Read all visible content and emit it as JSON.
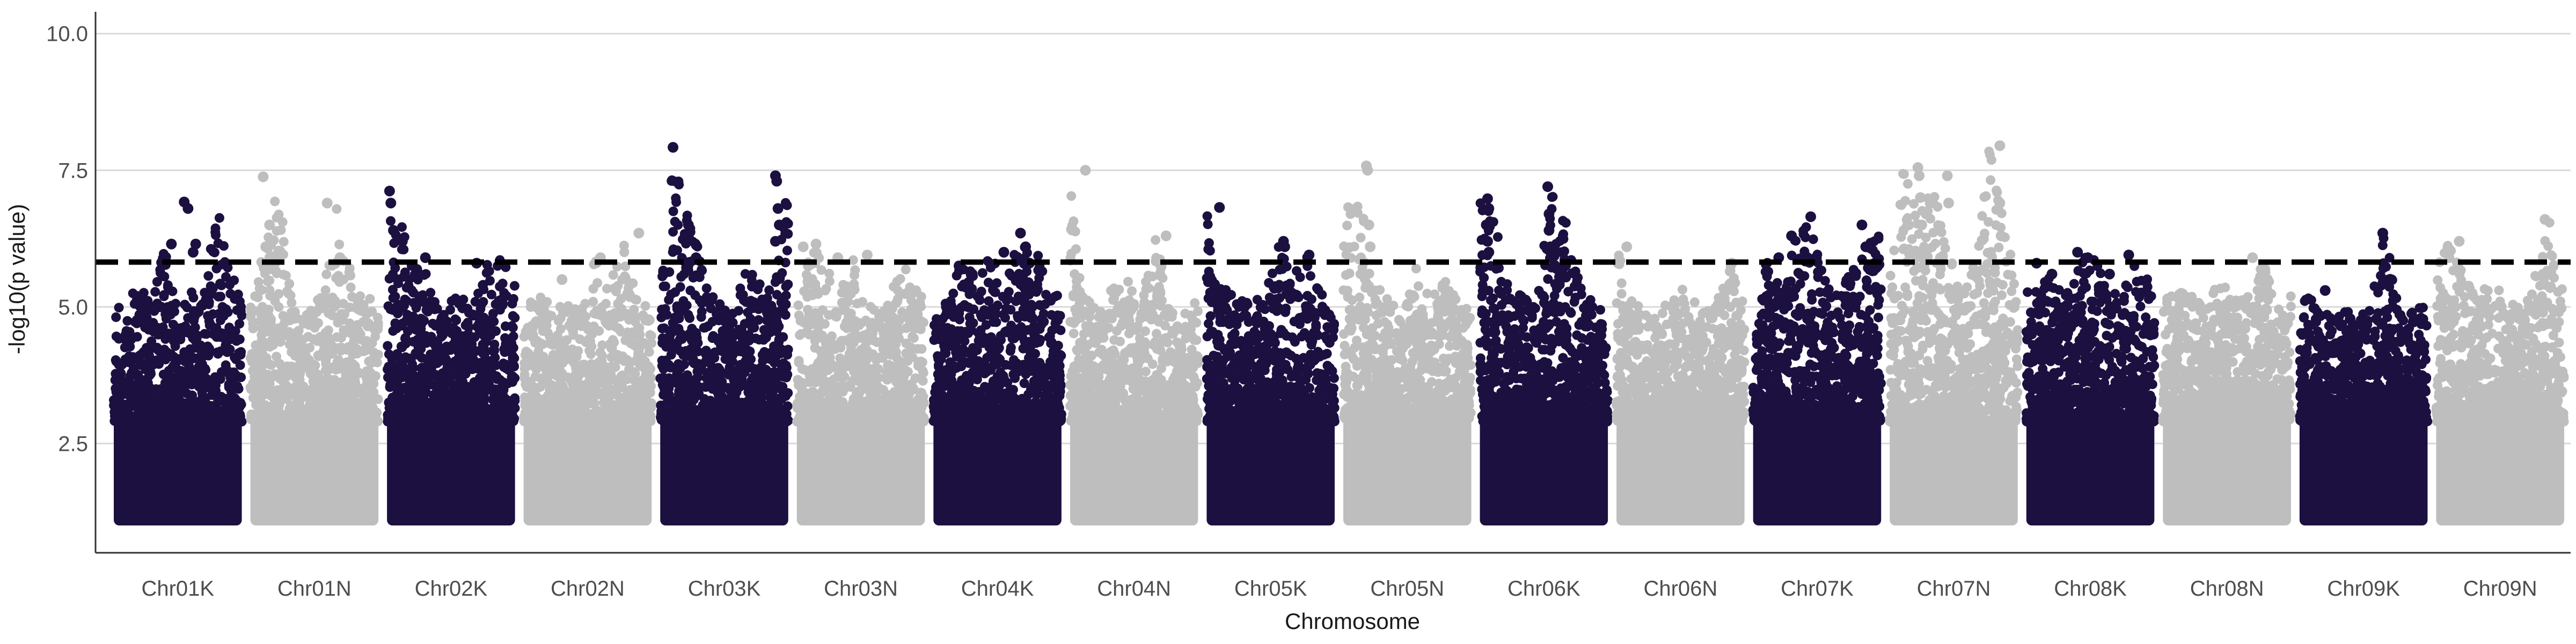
{
  "chart_data": {
    "type": "scatter",
    "title": "",
    "xlabel": "Chromosome",
    "ylabel": "-log10(p value)",
    "ylim": [
      0.5,
      10.4
    ],
    "yticks": [
      2.5,
      5.0,
      7.5,
      10.0
    ],
    "ytick_labels": [
      "2.5",
      "5.0",
      "7.5",
      "10.0"
    ],
    "grid": "horizontal major gridlines only",
    "legend": "none",
    "colors": {
      "odd": "#1c1040",
      "even": "#bebebe",
      "threshold": "#000000",
      "grid": "#d9d9d9"
    },
    "threshold": {
      "y": 5.82,
      "style": "dashed"
    },
    "base_points_range": [
      1.0,
      3.0
    ],
    "chromosomes": [
      {
        "name": "Chr01K",
        "color": "#1c1040",
        "peaks": [
          4.9,
          5.2,
          5.4,
          5.0,
          6.2,
          4.9,
          5.3,
          5.1,
          6.9,
          6.1,
          5.0
        ],
        "points": [
          [
            0.55,
            6.92
          ],
          [
            0.58,
            6.8
          ],
          [
            0.62,
            6.0
          ],
          [
            0.64,
            6.15
          ],
          [
            0.45,
            6.15
          ]
        ]
      },
      {
        "name": "Chr01N",
        "color": "#bebebe",
        "peaks": [
          5.2,
          6.1,
          7.4,
          5.0,
          4.9,
          5.3,
          6.9,
          5.8,
          5.1,
          5.4
        ],
        "points": [
          [
            0.1,
            7.38
          ],
          [
            0.15,
            6.5
          ],
          [
            0.6,
            6.9
          ],
          [
            0.7,
            5.9
          ],
          [
            0.12,
            6.1
          ]
        ]
      },
      {
        "name": "Chr02K",
        "color": "#1c1040",
        "peaks": [
          7.1,
          6.5,
          6.0,
          5.5,
          4.9,
          5.3,
          5.0,
          5.8,
          5.9,
          5.4
        ],
        "points": [
          [
            0.02,
            7.12
          ],
          [
            0.03,
            6.9
          ],
          [
            0.12,
            6.2
          ],
          [
            0.05,
            6.4
          ],
          [
            0.3,
            5.9
          ],
          [
            0.7,
            5.8
          ]
        ]
      },
      {
        "name": "Chr02N",
        "color": "#bebebe",
        "peaks": [
          4.8,
          5.5,
          5.0,
          5.2,
          4.9,
          5.9,
          5.3,
          6.4,
          5.1,
          5.0
        ],
        "points": [
          [
            0.9,
            6.35
          ],
          [
            0.6,
            5.9
          ],
          [
            0.3,
            5.5
          ]
        ]
      },
      {
        "name": "Chr03K",
        "color": "#1c1040",
        "peaks": [
          5.2,
          7.9,
          6.6,
          5.8,
          5.4,
          5.0,
          5.7,
          5.5,
          5.3,
          7.4
        ],
        "points": [
          [
            0.1,
            7.92
          ],
          [
            0.22,
            6.5
          ],
          [
            0.28,
            5.9
          ],
          [
            0.9,
            7.4
          ],
          [
            0.91,
            7.3
          ],
          [
            0.92,
            6.8
          ],
          [
            0.93,
            6.5
          ],
          [
            0.9,
            6.2
          ]
        ]
      },
      {
        "name": "Chr03N",
        "color": "#bebebe",
        "peaks": [
          5.1,
          6.1,
          5.9,
          5.4,
          6.0,
          5.2,
          4.9,
          5.5,
          5.8,
          5.0
        ],
        "points": [
          [
            0.05,
            6.1
          ],
          [
            0.15,
            6.15
          ],
          [
            0.32,
            5.9
          ],
          [
            0.55,
            5.95
          ]
        ]
      },
      {
        "name": "Chr04K",
        "color": "#1c1040",
        "peaks": [
          4.9,
          5.2,
          5.8,
          5.6,
          6.0,
          5.4,
          6.3,
          6.1,
          5.7,
          5.1
        ],
        "points": [
          [
            0.55,
            6.0
          ],
          [
            0.68,
            6.35
          ],
          [
            0.72,
            6.1
          ],
          [
            0.75,
            5.8
          ],
          [
            0.2,
            5.75
          ]
        ]
      },
      {
        "name": "Chr04N",
        "color": "#bebebe",
        "peaks": [
          7.5,
          5.2,
          5.0,
          5.4,
          5.6,
          5.1,
          6.3,
          5.0,
          4.9,
          5.3
        ],
        "points": [
          [
            0.12,
            7.5
          ],
          [
            0.75,
            6.3
          ]
        ]
      },
      {
        "name": "Chr05K",
        "color": "#1c1040",
        "peaks": [
          6.8,
          5.3,
          5.4,
          5.1,
          5.2,
          6.2,
          5.5,
          6.0,
          5.3,
          5.1
        ],
        "points": [
          [
            0.1,
            6.82
          ],
          [
            0.6,
            6.2
          ],
          [
            0.61,
            6.1
          ],
          [
            0.8,
            5.95
          ]
        ]
      },
      {
        "name": "Chr05N",
        "color": "#bebebe",
        "peaks": [
          6.5,
          7.6,
          5.5,
          5.2,
          5.0,
          5.8,
          5.3,
          5.6,
          5.1,
          5.0
        ],
        "points": [
          [
            0.18,
            7.58
          ],
          [
            0.19,
            7.5
          ],
          [
            0.2,
            6.5
          ],
          [
            0.21,
            6.1
          ]
        ]
      },
      {
        "name": "Chr06K",
        "color": "#1c1040",
        "peaks": [
          7.0,
          6.8,
          5.3,
          5.2,
          5.0,
          7.2,
          6.7,
          5.4,
          5.1,
          5.0
        ],
        "points": [
          [
            0.06,
            6.98
          ],
          [
            0.07,
            6.8
          ],
          [
            0.05,
            6.5
          ],
          [
            0.06,
            6.2
          ],
          [
            0.07,
            6.0
          ],
          [
            0.53,
            7.2
          ],
          [
            0.54,
            6.7
          ],
          [
            0.54,
            6.4
          ],
          [
            0.55,
            6.1
          ],
          [
            0.6,
            5.7
          ]
        ]
      },
      {
        "name": "Chr06N",
        "color": "#bebebe",
        "peaks": [
          6.1,
          5.2,
          5.0,
          4.8,
          5.5,
          5.3,
          4.9,
          5.1,
          5.8,
          5.0
        ],
        "points": [
          [
            0.08,
            6.1
          ],
          [
            0.9,
            5.8
          ]
        ]
      },
      {
        "name": "Chr07K",
        "color": "#1c1040",
        "peaks": [
          5.0,
          5.9,
          5.3,
          6.3,
          6.6,
          5.5,
          5.2,
          5.8,
          6.1,
          6.5
        ],
        "points": [
          [
            0.3,
            6.3
          ],
          [
            0.45,
            6.65
          ],
          [
            0.85,
            6.5
          ],
          [
            0.88,
            6.1
          ],
          [
            0.2,
            5.9
          ]
        ]
      },
      {
        "name": "Chr07N",
        "color": "#bebebe",
        "peaks": [
          5.5,
          7.6,
          6.9,
          7.4,
          6.2,
          5.3,
          5.8,
          7.9,
          6.9,
          5.4
        ],
        "points": [
          [
            0.22,
            7.55
          ],
          [
            0.23,
            7.4
          ],
          [
            0.24,
            7.0
          ],
          [
            0.25,
            6.5
          ],
          [
            0.45,
            7.4
          ],
          [
            0.46,
            6.9
          ],
          [
            0.86,
            7.95
          ],
          [
            0.86,
            6.9
          ],
          [
            0.87,
            6.3
          ]
        ]
      },
      {
        "name": "Chr08K",
        "color": "#1c1040",
        "peaks": [
          5.8,
          5.5,
          5.6,
          5.3,
          6.0,
          5.9,
          5.2,
          5.4,
          6.0,
          5.1
        ],
        "points": [
          [
            0.08,
            5.8
          ],
          [
            0.2,
            5.6
          ],
          [
            0.4,
            6.0
          ],
          [
            0.48,
            5.9
          ],
          [
            0.65,
            5.6
          ],
          [
            0.8,
            5.95
          ]
        ]
      },
      {
        "name": "Chr08N",
        "color": "#bebebe",
        "peaks": [
          5.1,
          5.3,
          5.2,
          5.0,
          5.6,
          5.1,
          5.3,
          5.9,
          5.0,
          5.2
        ],
        "points": [
          [
            0.7,
            5.9
          ]
        ]
      },
      {
        "name": "Chr09K",
        "color": "#1c1040",
        "peaks": [
          5.4,
          5.1,
          4.9,
          5.0,
          4.8,
          5.2,
          6.4,
          5.0,
          4.9,
          5.1
        ],
        "points": [
          [
            0.65,
            6.35
          ],
          [
            0.2,
            5.3
          ]
        ]
      },
      {
        "name": "Chr09N",
        "color": "#bebebe",
        "peaks": [
          5.8,
          6.2,
          5.5,
          5.3,
          5.4,
          5.2,
          5.0,
          5.6,
          6.6,
          5.3
        ],
        "points": [
          [
            0.18,
            6.2
          ],
          [
            0.85,
            6.6
          ],
          [
            0.1,
            5.9
          ]
        ]
      }
    ]
  }
}
